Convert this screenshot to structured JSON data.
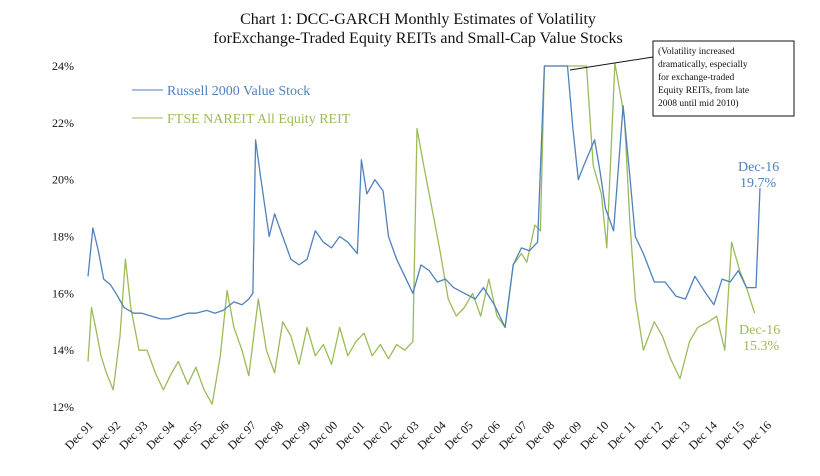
{
  "chart_data": {
    "type": "line",
    "title_line1": "Chart 1: DCC-GARCH Monthly Estimates of Volatility",
    "title_line2": "forExchange-Traded Equity REITs and Small-Cap Value Stocks",
    "ylim": [
      0.12,
      0.24
    ],
    "y_ticks": [
      "12%",
      "14%",
      "16%",
      "18%",
      "20%",
      "22%",
      "24%"
    ],
    "x_tick_labels": [
      "Dec 91",
      "Dec 92",
      "Dec 93",
      "Dec 94",
      "Dec 95",
      "Dec 96",
      "Dec 97",
      "Dec 98",
      "Dec 99",
      "Dec 00",
      "Dec 01",
      "Dec 02",
      "Dec 03",
      "Dec 04",
      "Dec 05",
      "Dec 06",
      "Dec 07",
      "Dec 08",
      "Dec 09",
      "Dec 10",
      "Dec 11",
      "Dec 12",
      "Dec 13",
      "Dec 14",
      "Dec 15",
      "Dec 16"
    ],
    "grid": false,
    "legend_position": "top-left",
    "series": [
      {
        "name": "Russell 2000 Value Stock",
        "color": "#4f81bd",
        "points": [
          [
            1991.92,
            0.166
          ],
          [
            1992.1,
            0.183
          ],
          [
            1992.3,
            0.175
          ],
          [
            1992.5,
            0.165
          ],
          [
            1992.75,
            0.163
          ],
          [
            1992.95,
            0.16
          ],
          [
            1993.25,
            0.155
          ],
          [
            1993.6,
            0.153
          ],
          [
            1993.9,
            0.153
          ],
          [
            1994.25,
            0.152
          ],
          [
            1994.6,
            0.151
          ],
          [
            1994.9,
            0.151
          ],
          [
            1995.25,
            0.152
          ],
          [
            1995.6,
            0.153
          ],
          [
            1995.9,
            0.153
          ],
          [
            1996.3,
            0.154
          ],
          [
            1996.6,
            0.153
          ],
          [
            1996.9,
            0.154
          ],
          [
            1997.3,
            0.157
          ],
          [
            1997.6,
            0.156
          ],
          [
            1997.85,
            0.158
          ],
          [
            1998.0,
            0.16
          ],
          [
            1998.1,
            0.214
          ],
          [
            1998.3,
            0.2
          ],
          [
            1998.6,
            0.18
          ],
          [
            1998.8,
            0.188
          ],
          [
            1999.1,
            0.18
          ],
          [
            1999.4,
            0.172
          ],
          [
            1999.7,
            0.17
          ],
          [
            2000.0,
            0.172
          ],
          [
            2000.3,
            0.182
          ],
          [
            2000.6,
            0.178
          ],
          [
            2000.9,
            0.176
          ],
          [
            2001.2,
            0.18
          ],
          [
            2001.5,
            0.178
          ],
          [
            2001.85,
            0.174
          ],
          [
            2002.0,
            0.207
          ],
          [
            2002.2,
            0.195
          ],
          [
            2002.5,
            0.2
          ],
          [
            2002.8,
            0.196
          ],
          [
            2003.0,
            0.18
          ],
          [
            2003.3,
            0.172
          ],
          [
            2003.6,
            0.166
          ],
          [
            2003.9,
            0.16
          ],
          [
            2004.2,
            0.17
          ],
          [
            2004.5,
            0.168
          ],
          [
            2004.8,
            0.164
          ],
          [
            2005.1,
            0.165
          ],
          [
            2005.4,
            0.162
          ],
          [
            2005.8,
            0.16
          ],
          [
            2006.2,
            0.158
          ],
          [
            2006.5,
            0.162
          ],
          [
            2006.9,
            0.156
          ],
          [
            2007.3,
            0.148
          ],
          [
            2007.6,
            0.17
          ],
          [
            2007.9,
            0.176
          ],
          [
            2008.2,
            0.175
          ],
          [
            2008.5,
            0.178
          ],
          [
            2008.75,
            0.24
          ],
          [
            2009.6,
            0.24
          ],
          [
            2009.8,
            0.218
          ],
          [
            2010.0,
            0.2
          ],
          [
            2010.2,
            0.205
          ],
          [
            2010.6,
            0.214
          ],
          [
            2010.8,
            0.203
          ],
          [
            2011.0,
            0.19
          ],
          [
            2011.3,
            0.182
          ],
          [
            2011.65,
            0.226
          ],
          [
            2011.9,
            0.201
          ],
          [
            2012.1,
            0.18
          ],
          [
            2012.4,
            0.174
          ],
          [
            2012.8,
            0.164
          ],
          [
            2013.2,
            0.164
          ],
          [
            2013.6,
            0.159
          ],
          [
            2013.95,
            0.158
          ],
          [
            2014.3,
            0.166
          ],
          [
            2014.7,
            0.16
          ],
          [
            2015.0,
            0.156
          ],
          [
            2015.3,
            0.165
          ],
          [
            2015.6,
            0.164
          ],
          [
            2015.9,
            0.168
          ],
          [
            2016.2,
            0.162
          ],
          [
            2016.55,
            0.162
          ],
          [
            2016.7,
            0.197
          ]
        ]
      },
      {
        "name": "FTSE NAREIT All Equity REIT",
        "color": "#9bbb59",
        "points": [
          [
            1991.92,
            0.136
          ],
          [
            1992.05,
            0.155
          ],
          [
            1992.2,
            0.148
          ],
          [
            1992.4,
            0.138
          ],
          [
            1992.6,
            0.132
          ],
          [
            1992.85,
            0.126
          ],
          [
            1993.1,
            0.145
          ],
          [
            1993.3,
            0.172
          ],
          [
            1993.5,
            0.155
          ],
          [
            1993.8,
            0.14
          ],
          [
            1994.1,
            0.14
          ],
          [
            1994.4,
            0.132
          ],
          [
            1994.7,
            0.126
          ],
          [
            1994.95,
            0.131
          ],
          [
            1995.25,
            0.136
          ],
          [
            1995.6,
            0.128
          ],
          [
            1995.9,
            0.134
          ],
          [
            1996.2,
            0.126
          ],
          [
            1996.5,
            0.121
          ],
          [
            1996.8,
            0.138
          ],
          [
            1997.05,
            0.161
          ],
          [
            1997.3,
            0.148
          ],
          [
            1997.6,
            0.14
          ],
          [
            1997.85,
            0.131
          ],
          [
            1998.2,
            0.158
          ],
          [
            1998.5,
            0.14
          ],
          [
            1998.8,
            0.132
          ],
          [
            1999.1,
            0.15
          ],
          [
            1999.4,
            0.145
          ],
          [
            1999.7,
            0.135
          ],
          [
            2000.0,
            0.148
          ],
          [
            2000.3,
            0.138
          ],
          [
            2000.6,
            0.142
          ],
          [
            2000.9,
            0.135
          ],
          [
            2001.2,
            0.148
          ],
          [
            2001.5,
            0.138
          ],
          [
            2001.8,
            0.143
          ],
          [
            2002.1,
            0.146
          ],
          [
            2002.4,
            0.138
          ],
          [
            2002.7,
            0.142
          ],
          [
            2003.0,
            0.137
          ],
          [
            2003.3,
            0.142
          ],
          [
            2003.6,
            0.14
          ],
          [
            2003.9,
            0.143
          ],
          [
            2004.05,
            0.218
          ],
          [
            2004.3,
            0.205
          ],
          [
            2004.6,
            0.19
          ],
          [
            2004.9,
            0.175
          ],
          [
            2005.2,
            0.158
          ],
          [
            2005.5,
            0.152
          ],
          [
            2005.8,
            0.155
          ],
          [
            2006.1,
            0.16
          ],
          [
            2006.4,
            0.152
          ],
          [
            2006.7,
            0.165
          ],
          [
            2007.0,
            0.152
          ],
          [
            2007.3,
            0.148
          ],
          [
            2007.6,
            0.17
          ],
          [
            2007.9,
            0.174
          ],
          [
            2008.1,
            0.171
          ],
          [
            2008.4,
            0.184
          ],
          [
            2008.6,
            0.182
          ],
          [
            2008.75,
            0.24
          ],
          [
            2010.0,
            0.24
          ],
          [
            2010.3,
            0.24
          ],
          [
            2010.55,
            0.205
          ],
          [
            2010.85,
            0.195
          ],
          [
            2011.05,
            0.176
          ],
          [
            2011.35,
            0.241
          ],
          [
            2011.7,
            0.222
          ],
          [
            2011.9,
            0.185
          ],
          [
            2012.1,
            0.158
          ],
          [
            2012.4,
            0.14
          ],
          [
            2012.8,
            0.15
          ],
          [
            2013.1,
            0.145
          ],
          [
            2013.4,
            0.137
          ],
          [
            2013.75,
            0.13
          ],
          [
            2014.1,
            0.143
          ],
          [
            2014.4,
            0.148
          ],
          [
            2014.8,
            0.15
          ],
          [
            2015.1,
            0.152
          ],
          [
            2015.4,
            0.14
          ],
          [
            2015.65,
            0.178
          ],
          [
            2015.95,
            0.168
          ],
          [
            2016.2,
            0.162
          ],
          [
            2016.5,
            0.153
          ]
        ]
      }
    ],
    "annotations": {
      "note_lines": [
        "(Volatility increased",
        "dramatically, especially",
        "for exchange-traded",
        "Equity REITs, from late",
        "2008 until mid 2010)"
      ],
      "russell_end_label": "Dec-16",
      "russell_end_value": "19.7%",
      "ftse_end_label": "Dec-16",
      "ftse_end_value": "15.3%"
    }
  }
}
